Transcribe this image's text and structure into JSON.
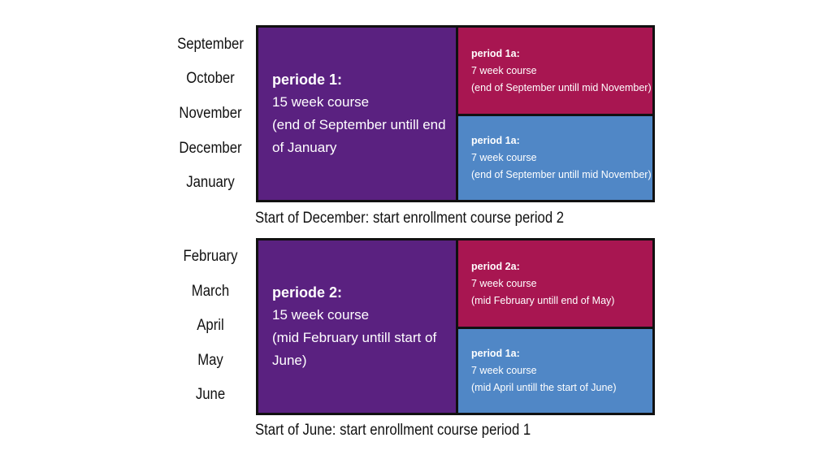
{
  "colors": {
    "long_course": "#5a2180",
    "first_half": "#a81651",
    "second_half": "#5087c6",
    "border": "#111111"
  },
  "sections": [
    {
      "months": [
        "September",
        "October",
        "November",
        "December",
        "January"
      ],
      "main": {
        "title": "periode 1:",
        "line1": "15 week course",
        "line2": "(end of September untill end of January"
      },
      "top": {
        "title": "period 1a:",
        "line1": "7 week course",
        "line2": "(end of September untill mid November)"
      },
      "bottom": {
        "title": "period 1a:",
        "line1": "7 week course",
        "line2": "(end of September untill mid November)"
      },
      "caption": "Start of December: start enrollment course period 2"
    },
    {
      "months": [
        "February",
        "March",
        "April",
        "May",
        "June"
      ],
      "main": {
        "title": "periode 2:",
        "line1": "15 week course",
        "line2": "(mid February untill start of June)"
      },
      "top": {
        "title": "period 2a:",
        "line1": "7 week course",
        "line2": "(mid February untill end of May)"
      },
      "bottom": {
        "title": "period 1a:",
        "line1": "7 week course",
        "line2": "(mid April untill the start of June)"
      },
      "caption": "Start of June: start enrollment course period 1"
    }
  ]
}
